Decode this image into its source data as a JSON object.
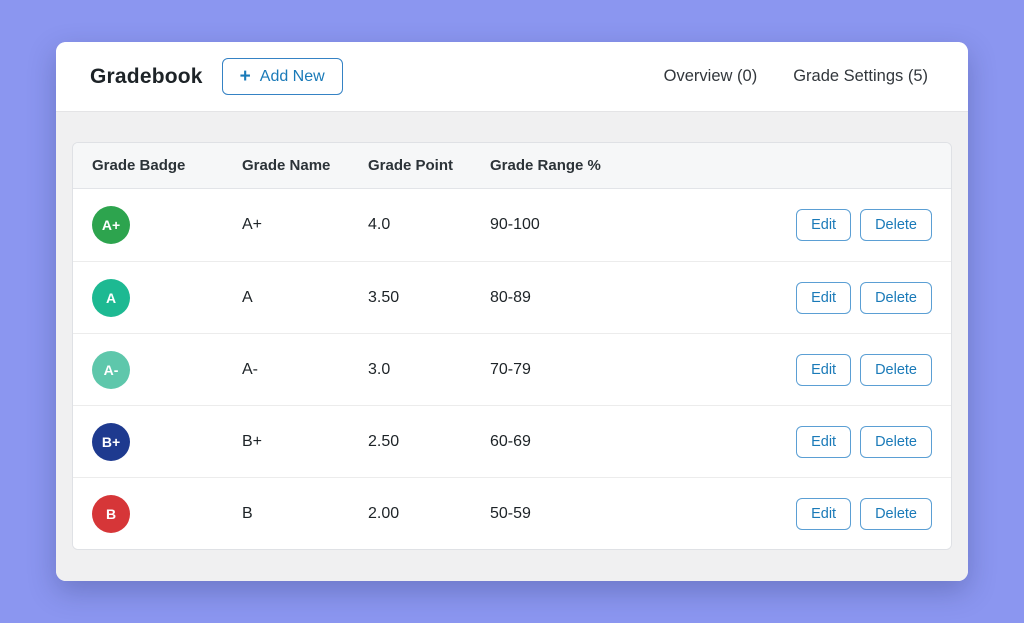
{
  "page": {
    "background_color": "#8b96f0",
    "accent_color": "#2271b1"
  },
  "header": {
    "title": "Gradebook",
    "add_new": {
      "icon": "plus-icon",
      "label": "Add New"
    },
    "tabs": [
      {
        "label": "Overview (0)"
      },
      {
        "label": "Grade Settings (5)"
      }
    ]
  },
  "table": {
    "columns": [
      "Grade Badge",
      "Grade Name",
      "Grade Point",
      "Grade Range %"
    ],
    "rows": [
      {
        "badge": "A+",
        "badge_color": "#2da44e",
        "name": "A+",
        "point": "4.0",
        "range": "90-100"
      },
      {
        "badge": "A",
        "badge_color": "#1db992",
        "name": "A",
        "point": "3.50",
        "range": "80-89"
      },
      {
        "badge": "A-",
        "badge_color": "#5ec7ab",
        "name": "A-",
        "point": "3.0",
        "range": "70-79"
      },
      {
        "badge": "B+",
        "badge_color": "#1e3a8f",
        "name": "B+",
        "point": "2.50",
        "range": "60-69"
      },
      {
        "badge": "B",
        "badge_color": "#d63638",
        "name": "B",
        "point": "2.00",
        "range": "50-59"
      }
    ],
    "actions": {
      "edit_label": "Edit",
      "delete_label": "Delete"
    }
  }
}
